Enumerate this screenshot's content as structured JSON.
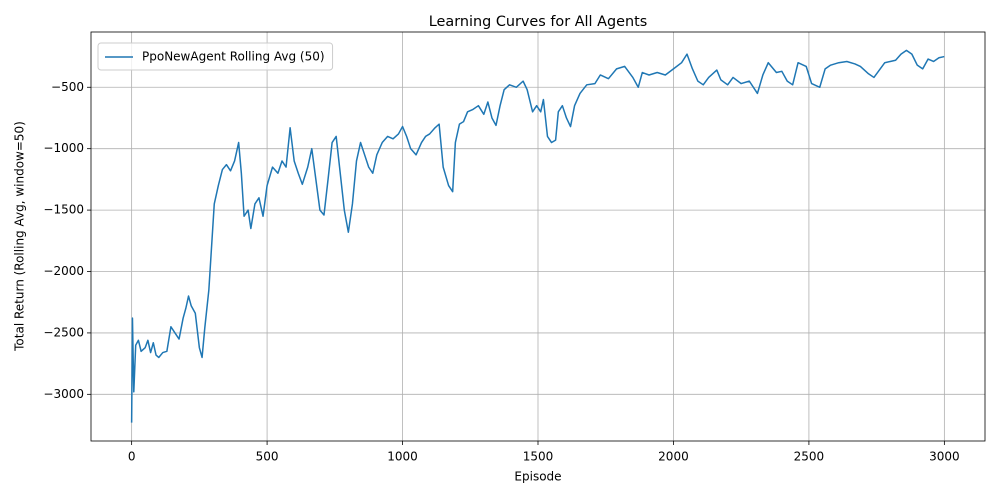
{
  "chart_data": {
    "type": "line",
    "title": "Learning Curves for All Agents",
    "x_label": "Episode",
    "y_label": "Total Return (Rolling Avg, window=50)",
    "xlim": [
      -150,
      3150
    ],
    "ylim": [
      -3380,
      -50
    ],
    "xticks": [
      0,
      500,
      1000,
      1500,
      2000,
      2500,
      3000
    ],
    "yticks": [
      {
        "value": -3000,
        "label": "−3000"
      },
      {
        "value": -2500,
        "label": "−2500"
      },
      {
        "value": -2000,
        "label": "−2000"
      },
      {
        "value": -1500,
        "label": "−1500"
      },
      {
        "value": -1000,
        "label": "−1000"
      },
      {
        "value": -500,
        "label": "−500"
      }
    ],
    "grid": true,
    "legend": "upper left",
    "x": [
      0,
      3,
      8,
      15,
      25,
      35,
      50,
      60,
      70,
      80,
      90,
      100,
      115,
      130,
      145,
      160,
      175,
      190,
      200,
      210,
      220,
      235,
      250,
      260,
      270,
      285,
      295,
      305,
      320,
      335,
      350,
      365,
      380,
      395,
      405,
      415,
      430,
      440,
      455,
      470,
      485,
      500,
      520,
      540,
      555,
      570,
      585,
      600,
      615,
      630,
      650,
      665,
      680,
      695,
      710,
      725,
      740,
      755,
      770,
      785,
      800,
      815,
      830,
      845,
      860,
      875,
      890,
      905,
      925,
      945,
      965,
      985,
      1000,
      1015,
      1030,
      1050,
      1070,
      1085,
      1100,
      1120,
      1135,
      1150,
      1170,
      1185,
      1195,
      1210,
      1225,
      1240,
      1260,
      1280,
      1300,
      1315,
      1330,
      1345,
      1360,
      1375,
      1395,
      1420,
      1445,
      1460,
      1480,
      1495,
      1510,
      1520,
      1535,
      1550,
      1565,
      1575,
      1590,
      1605,
      1620,
      1635,
      1655,
      1680,
      1710,
      1730,
      1760,
      1790,
      1820,
      1850,
      1870,
      1885,
      1910,
      1940,
      1970,
      2000,
      2030,
      2050,
      2070,
      2090,
      2110,
      2130,
      2160,
      2175,
      2200,
      2220,
      2250,
      2280,
      2310,
      2330,
      2350,
      2380,
      2400,
      2420,
      2440,
      2460,
      2490,
      2510,
      2540,
      2560,
      2580,
      2610,
      2640,
      2670,
      2690,
      2720,
      2740,
      2760,
      2780,
      2800,
      2820,
      2840,
      2860,
      2880,
      2900,
      2920,
      2940,
      2960,
      2980,
      3000
    ],
    "series": [
      {
        "name": "PpoNewAgent Rolling Avg (50)",
        "color": "#1f77b4",
        "values": [
          -3230,
          -2380,
          -2980,
          -2600,
          -2560,
          -2650,
          -2620,
          -2560,
          -2660,
          -2580,
          -2680,
          -2700,
          -2660,
          -2650,
          -2450,
          -2500,
          -2550,
          -2380,
          -2300,
          -2200,
          -2280,
          -2340,
          -2620,
          -2700,
          -2460,
          -2150,
          -1800,
          -1450,
          -1300,
          -1170,
          -1130,
          -1180,
          -1100,
          -950,
          -1200,
          -1550,
          -1500,
          -1650,
          -1450,
          -1400,
          -1550,
          -1300,
          -1150,
          -1200,
          -1100,
          -1150,
          -830,
          -1100,
          -1200,
          -1290,
          -1150,
          -1000,
          -1250,
          -1500,
          -1540,
          -1250,
          -950,
          -900,
          -1200,
          -1500,
          -1680,
          -1450,
          -1100,
          -950,
          -1050,
          -1150,
          -1200,
          -1050,
          -950,
          -900,
          -920,
          -880,
          -820,
          -900,
          -1000,
          -1050,
          -950,
          -900,
          -880,
          -830,
          -800,
          -1150,
          -1300,
          -1350,
          -950,
          -800,
          -780,
          -700,
          -680,
          -650,
          -720,
          -620,
          -750,
          -810,
          -650,
          -520,
          -480,
          -500,
          -450,
          -520,
          -700,
          -650,
          -700,
          -600,
          -900,
          -950,
          -930,
          -700,
          -650,
          -750,
          -820,
          -650,
          -550,
          -480,
          -470,
          -400,
          -430,
          -350,
          -330,
          -420,
          -500,
          -380,
          -400,
          -380,
          -400,
          -350,
          -300,
          -230,
          -350,
          -450,
          -480,
          -420,
          -360,
          -440,
          -480,
          -420,
          -470,
          -450,
          -550,
          -400,
          -300,
          -380,
          -370,
          -450,
          -480,
          -300,
          -330,
          -470,
          -500,
          -350,
          -320,
          -300,
          -290,
          -310,
          -330,
          -390,
          -420,
          -360,
          -300,
          -290,
          -280,
          -230,
          -200,
          -230,
          -320,
          -350,
          -270,
          -290,
          -260,
          -250
        ]
      }
    ]
  }
}
